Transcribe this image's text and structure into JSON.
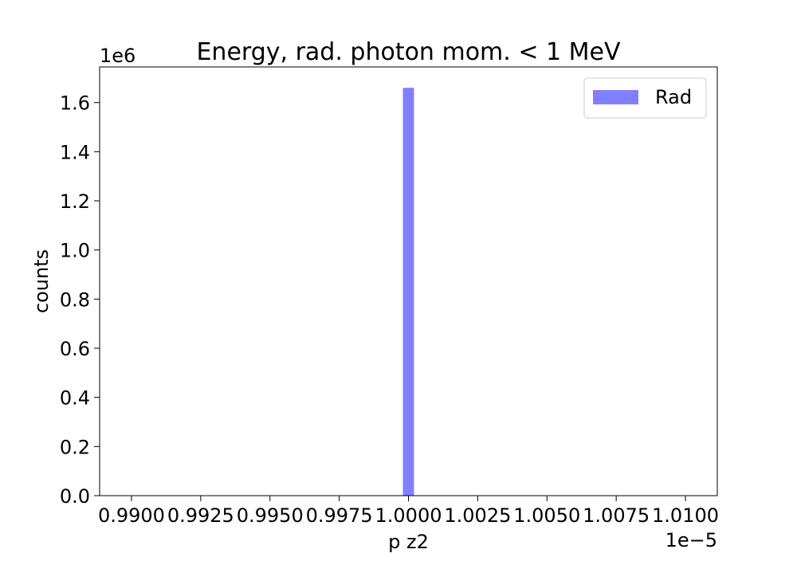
{
  "chart_data": {
    "type": "bar",
    "title": "Energy, rad. photon mom. < 1 MeV",
    "xlabel": "p z2",
    "ylabel": "counts",
    "x_offset_label": "1e−5",
    "y_offset_label": "1e6",
    "xlim": [
      0.98885,
      1.01115
    ],
    "ylim": [
      0,
      1.745
    ],
    "x_ticks": [
      0.99,
      0.9925,
      0.995,
      0.9975,
      1.0,
      1.0025,
      1.005,
      1.0075,
      1.01
    ],
    "x_tick_labels": [
      "0.9900",
      "0.9925",
      "0.9950",
      "0.9975",
      "1.0000",
      "1.0025",
      "1.0050",
      "1.0075",
      "1.0100"
    ],
    "y_ticks": [
      0.0,
      0.2,
      0.4,
      0.6,
      0.8,
      1.0,
      1.2,
      1.4,
      1.6
    ],
    "y_tick_labels": [
      "0.0",
      "0.2",
      "0.4",
      "0.6",
      "0.8",
      "1.0",
      "1.2",
      "1.4",
      "1.6"
    ],
    "series": [
      {
        "name": "Rad",
        "color": "#8080ff",
        "bins": [
          {
            "x0": 0.9998,
            "x1": 1.0002,
            "value": 1.66
          }
        ]
      }
    ],
    "legend_position": "top-right",
    "grid": false
  }
}
